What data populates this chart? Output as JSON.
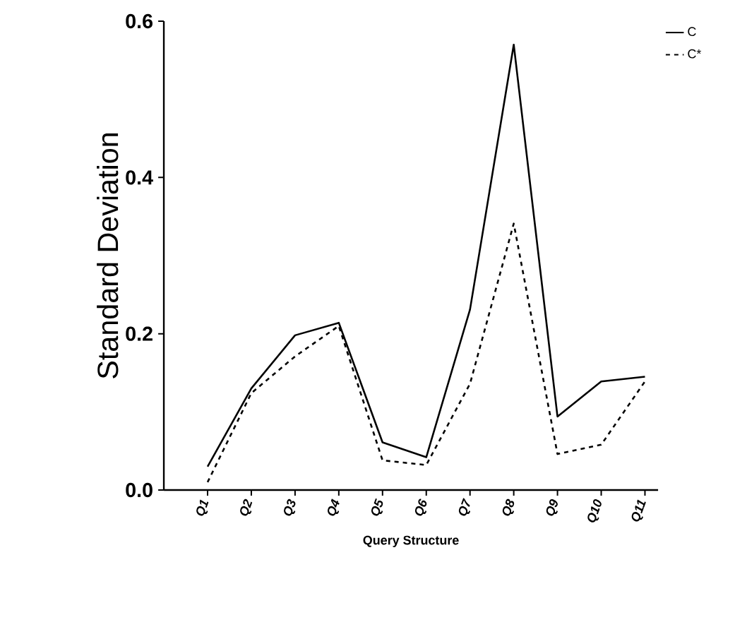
{
  "chart_data": {
    "type": "line",
    "xlabel": "Query Structure",
    "ylabel": "Standard Deviation",
    "categories": [
      "Q1",
      "Q2",
      "Q3",
      "Q4",
      "Q5",
      "Q6",
      "Q7",
      "Q8",
      "Q9",
      "Q10",
      "Q11"
    ],
    "series": [
      {
        "name": "C",
        "color": "#000000",
        "line_style": "solid",
        "values": [
          0.03,
          0.13,
          0.198,
          0.214,
          0.061,
          0.042,
          0.231,
          0.57,
          0.094,
          0.139,
          0.145
        ]
      },
      {
        "name": "C*",
        "color": "#000000",
        "line_style": "dashed",
        "values": [
          0.01,
          0.124,
          0.171,
          0.21,
          0.038,
          0.032,
          0.136,
          0.341,
          0.046,
          0.058,
          0.139
        ]
      }
    ],
    "ylim": [
      0,
      0.6
    ],
    "yticks": [
      {
        "value": 0,
        "label": "0.0"
      },
      0.2,
      0.4,
      0.6
    ],
    "legend": "top right"
  }
}
